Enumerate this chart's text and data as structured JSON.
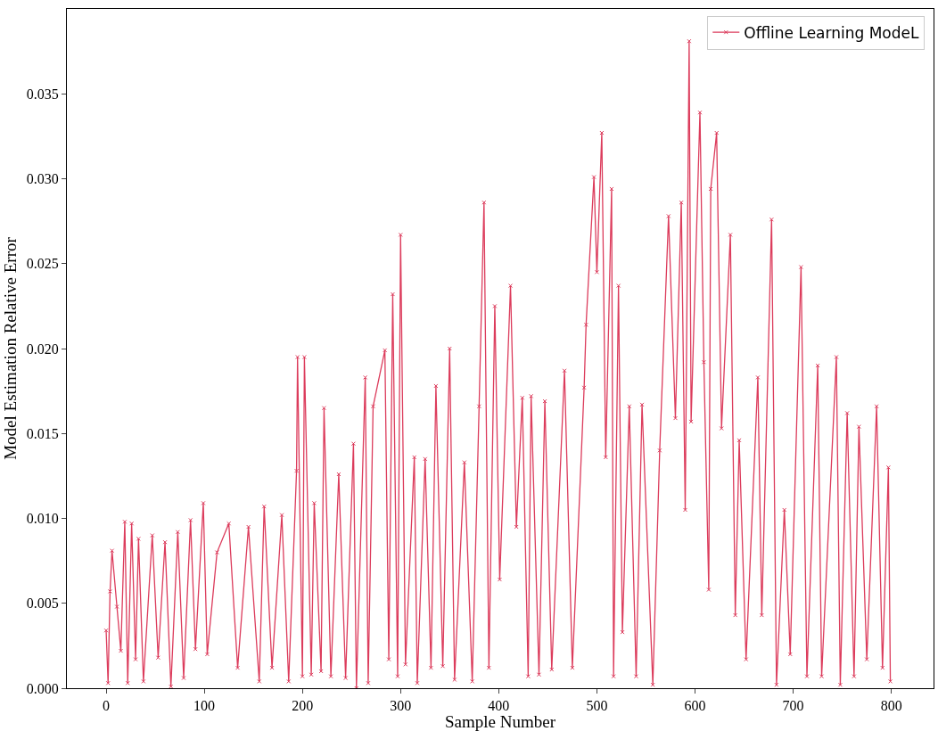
{
  "chart_data": {
    "type": "line",
    "xlabel": "Sample Number",
    "ylabel": "Model Estimation Relative Error",
    "xlim": [
      -40,
      843
    ],
    "xticks": [
      0,
      100,
      200,
      300,
      400,
      500,
      600,
      700,
      800
    ],
    "ylim": [
      0,
      0.04
    ],
    "yticks": [
      {
        "value": 0,
        "label": "0.000"
      },
      {
        "value": 0.005,
        "label": "0.005"
      },
      {
        "value": 0.01,
        "label": "0.010"
      },
      {
        "value": 0.015,
        "label": "0.015"
      },
      {
        "value": 0.02,
        "label": "0.020"
      },
      {
        "value": 0.025,
        "label": "0.025"
      },
      {
        "value": 0.03,
        "label": "0.030"
      },
      {
        "value": 0.035,
        "label": "0.035"
      }
    ],
    "legend": "top right",
    "marker": "cross",
    "line_style": "solid",
    "series": [
      {
        "name": "Offline Learning ModeL",
        "color": "#dc3c5c",
        "x": [
          0,
          2,
          4,
          6,
          11,
          15,
          19,
          22,
          26,
          30,
          33,
          38,
          47,
          53,
          60,
          66,
          73,
          79,
          86,
          91,
          99,
          103,
          113,
          125,
          134,
          145,
          156,
          161,
          169,
          179,
          186,
          194,
          195,
          200,
          202,
          209,
          212,
          219,
          222,
          229,
          237,
          244,
          252,
          255,
          264,
          267,
          272,
          284,
          288,
          292,
          297,
          300,
          305,
          314,
          317,
          325,
          331,
          336,
          343,
          350,
          355,
          365,
          373,
          380,
          385,
          390,
          396,
          401,
          412,
          418,
          424,
          430,
          433,
          441,
          447,
          454,
          467,
          475,
          487,
          489,
          497,
          500,
          505,
          509,
          515,
          517,
          522,
          526,
          533,
          540,
          546,
          557,
          564,
          573,
          580,
          586,
          590,
          594,
          596,
          605,
          609,
          614,
          616,
          622,
          627,
          636,
          641,
          645,
          652,
          664,
          668,
          678,
          683,
          691,
          697,
          708,
          714,
          725,
          729,
          744,
          748,
          755,
          762,
          767,
          775,
          785,
          791,
          797,
          799
        ],
        "values": [
          0.0034,
          0.0003,
          0.0057,
          0.0081,
          0.0048,
          0.0022,
          0.0098,
          0.0003,
          0.0097,
          0.0017,
          0.0088,
          0.0004,
          0.009,
          0.0018,
          0.0086,
          0.0001,
          0.0092,
          0.0006,
          0.0099,
          0.0023,
          0.0109,
          0.002,
          0.008,
          0.0097,
          0.0012,
          0.0095,
          0.0004,
          0.0107,
          0.0012,
          0.0102,
          0.0004,
          0.0128,
          0.0195,
          0.0007,
          0.0195,
          0.0008,
          0.0109,
          0.001,
          0.0165,
          0.0007,
          0.0126,
          0.0006,
          0.0144,
          0.0,
          0.0183,
          0.0003,
          0.0166,
          0.0199,
          0.0017,
          0.0232,
          0.0007,
          0.0267,
          0.0014,
          0.0136,
          0.0003,
          0.0135,
          0.0012,
          0.0178,
          0.0013,
          0.02,
          0.0005,
          0.0133,
          0.0004,
          0.0166,
          0.0286,
          0.0012,
          0.0225,
          0.0064,
          0.0237,
          0.0095,
          0.0171,
          0.0007,
          0.0172,
          0.0008,
          0.0169,
          0.0011,
          0.0187,
          0.0012,
          0.0177,
          0.0214,
          0.0301,
          0.0245,
          0.0327,
          0.0136,
          0.0294,
          0.0007,
          0.0237,
          0.0033,
          0.0166,
          0.0007,
          0.0167,
          0.0002,
          0.014,
          0.0278,
          0.0159,
          0.0286,
          0.0105,
          0.0381,
          0.0157,
          0.0339,
          0.0192,
          0.0058,
          0.0294,
          0.0327,
          0.0153,
          0.0267,
          0.0043,
          0.0146,
          0.0017,
          0.0183,
          0.0043,
          0.0276,
          0.0002,
          0.0105,
          0.002,
          0.0248,
          0.0007,
          0.019,
          0.0007,
          0.0195,
          0.0002,
          0.0162,
          0.0007,
          0.0154,
          0.0017,
          0.0166,
          0.0012,
          0.013,
          0.0004
        ]
      }
    ]
  }
}
